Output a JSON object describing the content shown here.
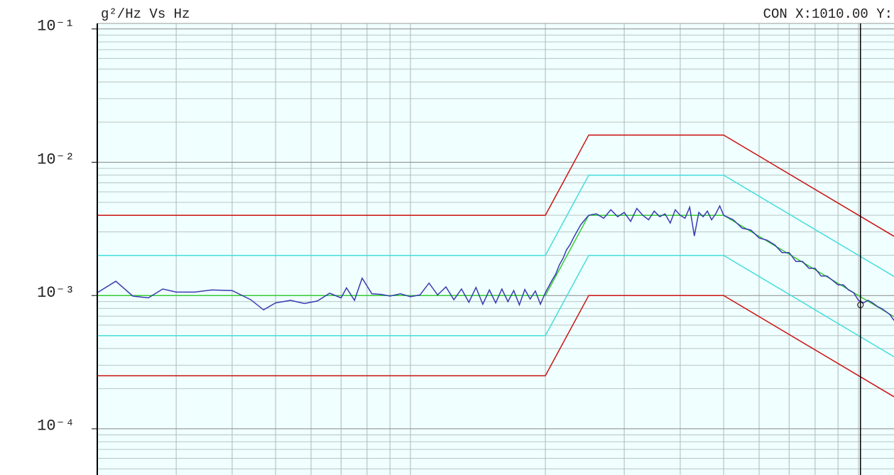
{
  "chart_data": {
    "type": "line",
    "title": "g²/Hz Vs Hz",
    "cursor_readout": "CON X:1010.00 Y:",
    "log_x": true,
    "log_y": true,
    "grid": true,
    "xlim": [
      20,
      1200
    ],
    "ylim": [
      4.5e-05,
      0.11
    ],
    "yticks": [
      {
        "value": 0.1,
        "label": "10⁻¹"
      },
      {
        "value": 0.01,
        "label": "10⁻²"
      },
      {
        "value": 0.001,
        "label": "10⁻³"
      },
      {
        "value": 0.0001,
        "label": "10⁻⁴"
      }
    ],
    "y_minor_grid": [
      5e-05,
      6e-05,
      7e-05,
      8e-05,
      9e-05,
      0.0002,
      0.0003,
      0.0004,
      0.0005,
      0.0006,
      0.0007,
      0.0008,
      0.0009,
      0.002,
      0.003,
      0.004,
      0.005,
      0.006,
      0.007,
      0.008,
      0.009,
      0.02,
      0.03,
      0.04,
      0.05,
      0.06,
      0.07,
      0.08,
      0.09
    ],
    "x_grid": [
      30,
      40,
      50,
      60,
      70,
      80,
      90,
      100,
      200,
      300,
      400,
      500,
      600,
      700,
      800,
      900,
      1000
    ],
    "cursor": {
      "x": 1010,
      "y": 0.00085,
      "color": "#000000"
    },
    "series": [
      {
        "color": "#cc1111",
        "x": [
          20,
          200,
          250,
          500,
          1200
        ],
        "values": [
          0.004,
          0.004,
          0.016,
          0.016,
          0.00278
        ]
      },
      {
        "color": "#44dddd",
        "x": [
          20,
          200,
          250,
          500,
          1200
        ],
        "values": [
          0.002,
          0.002,
          0.008,
          0.008,
          0.00139
        ]
      },
      {
        "color": "#33cc33",
        "x": [
          20,
          200,
          250,
          500,
          1200
        ],
        "values": [
          0.001,
          0.001,
          0.004,
          0.004,
          0.000694
        ]
      },
      {
        "color": "#44dddd",
        "x": [
          20,
          200,
          250,
          500,
          1200
        ],
        "values": [
          0.0005,
          0.0005,
          0.002,
          0.002,
          0.000347
        ]
      },
      {
        "color": "#cc1111",
        "x": [
          20,
          200,
          250,
          500,
          1200
        ],
        "values": [
          0.00025,
          0.00025,
          0.001,
          0.001,
          0.000174
        ]
      },
      {
        "color": "#3a3ab0",
        "x": [
          20,
          22,
          24,
          26,
          28,
          30,
          33,
          36,
          40,
          44,
          47,
          50,
          54,
          58,
          62,
          66,
          70,
          72,
          75,
          78,
          82,
          86,
          90,
          95,
          100,
          105,
          110,
          115,
          120,
          125,
          130,
          135,
          140,
          145,
          150,
          155,
          160,
          165,
          170,
          175,
          180,
          185,
          190,
          195,
          200,
          203,
          207,
          211,
          215,
          219,
          223,
          227,
          231,
          235,
          240,
          245,
          250,
          260,
          270,
          280,
          290,
          300,
          310,
          320,
          330,
          340,
          350,
          360,
          370,
          380,
          390,
          400,
          410,
          420,
          430,
          440,
          450,
          460,
          470,
          480,
          490,
          500,
          525,
          550,
          575,
          600,
          625,
          650,
          675,
          700,
          725,
          750,
          775,
          800,
          825,
          850,
          875,
          900,
          925,
          950,
          975,
          1000,
          1025,
          1050,
          1075,
          1100,
          1125,
          1150,
          1175,
          1200
        ],
        "values": [
          0.00105,
          0.00128,
          0.00099,
          0.00096,
          0.00112,
          0.00106,
          0.00106,
          0.0011,
          0.00109,
          0.00093,
          0.00078,
          0.00088,
          0.00092,
          0.00087,
          0.00091,
          0.00104,
          0.00096,
          0.00114,
          0.00092,
          0.00135,
          0.00103,
          0.00102,
          0.00099,
          0.00103,
          0.00098,
          0.00101,
          0.00124,
          0.00101,
          0.00116,
          0.00093,
          0.00112,
          0.00089,
          0.00115,
          0.00086,
          0.0011,
          0.00088,
          0.00112,
          0.0009,
          0.00109,
          0.00085,
          0.00111,
          0.00094,
          0.00108,
          0.00086,
          0.00105,
          0.00115,
          0.0013,
          0.00145,
          0.0017,
          0.0019,
          0.0022,
          0.0024,
          0.0027,
          0.003,
          0.0034,
          0.0037,
          0.004,
          0.0041,
          0.0038,
          0.0044,
          0.0039,
          0.0042,
          0.0036,
          0.0045,
          0.004,
          0.0037,
          0.0043,
          0.0039,
          0.0041,
          0.0035,
          0.0044,
          0.004,
          0.0038,
          0.0046,
          0.0028,
          0.0042,
          0.0039,
          0.0043,
          0.0037,
          0.0041,
          0.0047,
          0.004,
          0.0037,
          0.0032,
          0.0031,
          0.0027,
          0.0026,
          0.0024,
          0.0021,
          0.0021,
          0.0018,
          0.0018,
          0.0016,
          0.0016,
          0.0014,
          0.0014,
          0.0013,
          0.0012,
          0.0012,
          0.0011,
          0.00105,
          0.00092,
          0.00088,
          0.00092,
          0.00088,
          0.00083,
          0.0008,
          0.00076,
          0.00072,
          0.00065
        ]
      }
    ]
  }
}
